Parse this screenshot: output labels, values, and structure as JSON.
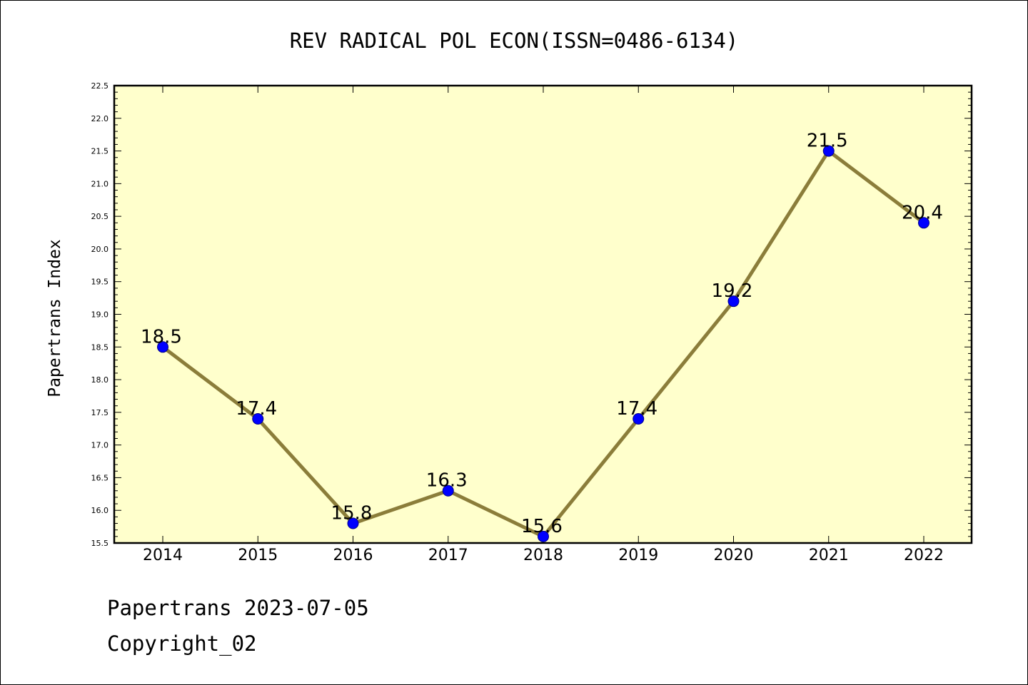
{
  "chart_data": {
    "type": "line",
    "title": "REV RADICAL POL ECON(ISSN=0486-6134)",
    "ylabel": "Papertrans Index",
    "xlabel": "",
    "categories": [
      "2014",
      "2015",
      "2016",
      "2017",
      "2018",
      "2019",
      "2020",
      "2021",
      "2022"
    ],
    "values": [
      18.5,
      17.4,
      15.8,
      16.3,
      15.6,
      17.4,
      19.2,
      21.5,
      20.4
    ],
    "data_labels": [
      "18.5",
      "17.4",
      "15.8",
      "16.3",
      "15.6",
      "17.4",
      "19.2",
      "21.5",
      "20.4"
    ],
    "ylim": [
      15.5,
      22.5
    ],
    "yticks": [
      "15.5",
      "16.0",
      "16.5",
      "17.0",
      "17.5",
      "18.0",
      "18.5",
      "19.0",
      "19.5",
      "20.0",
      "20.5",
      "21.0",
      "21.5",
      "22.0",
      "22.5"
    ],
    "grid": false,
    "colors": {
      "plot_background": "#ffffcc",
      "line": "#8b7d3a",
      "marker": "#0000ff"
    }
  },
  "footer": {
    "line1": "Papertrans 2023-07-05",
    "line2": "Copyright_02"
  }
}
